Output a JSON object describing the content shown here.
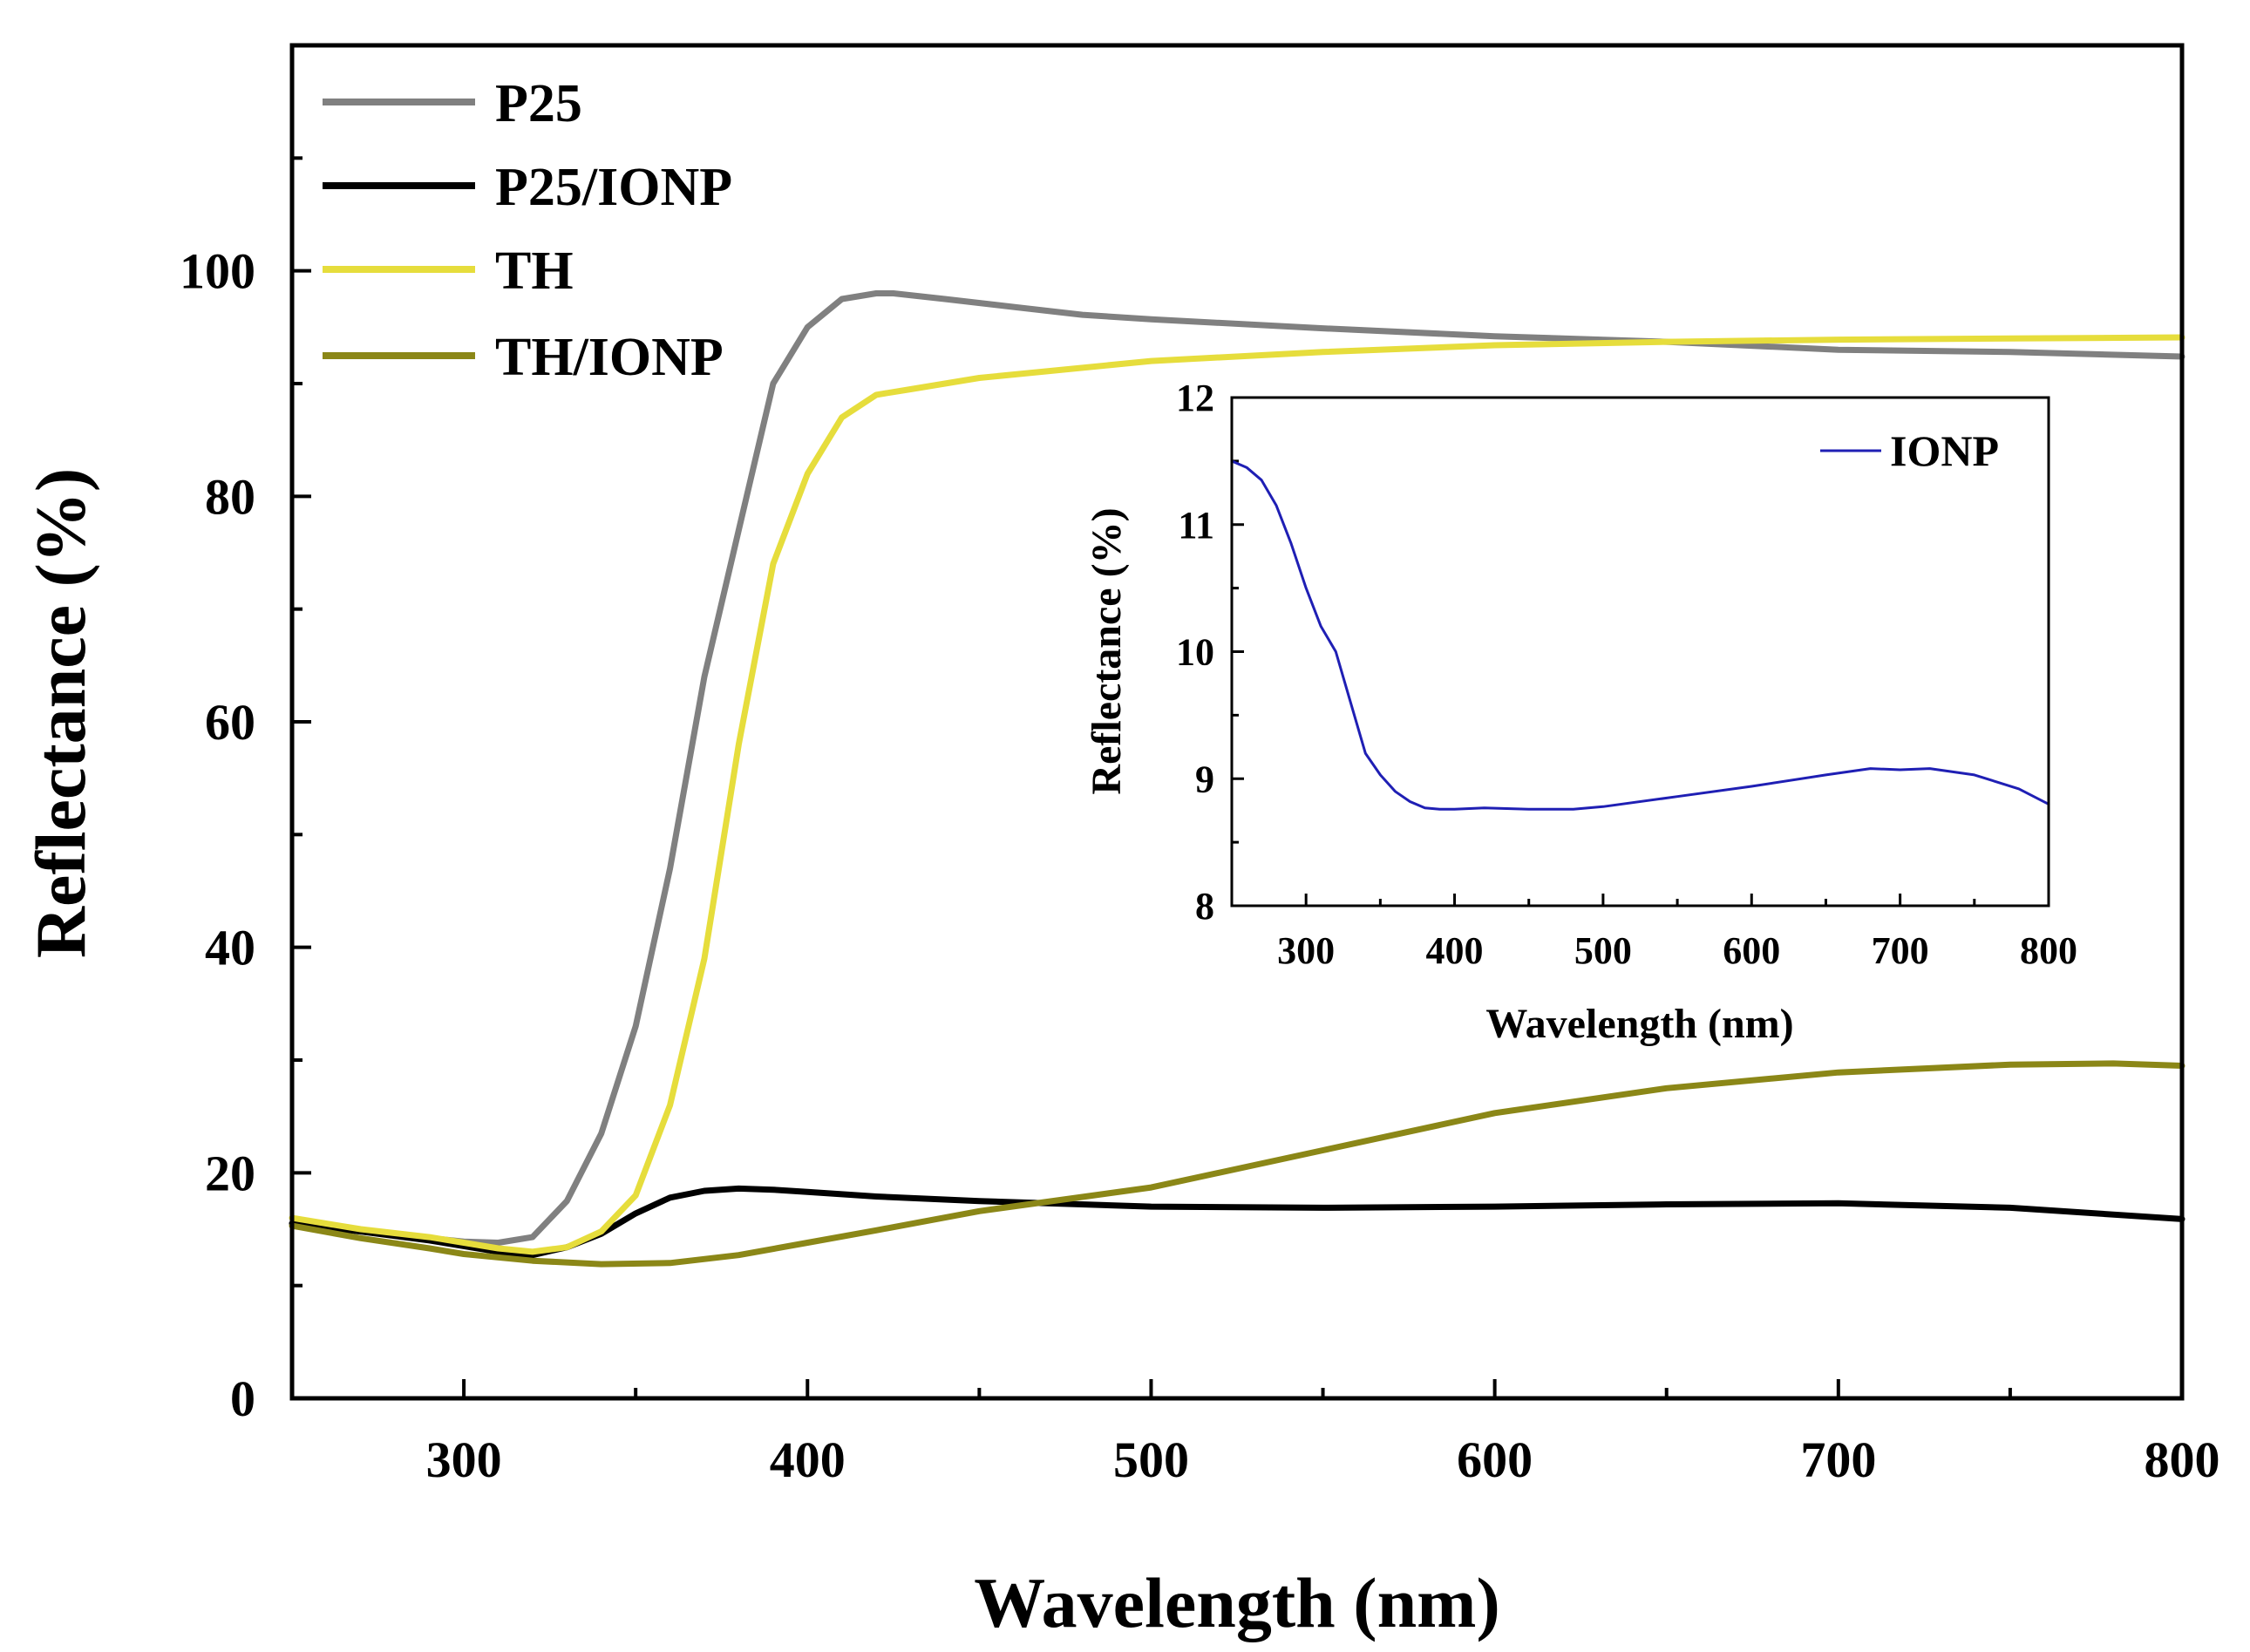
{
  "chart_data": [
    {
      "type": "line",
      "xlabel": "Wavelength (nm)",
      "ylabel": "Reflectance (%)",
      "xlim": [
        250,
        800
      ],
      "ylim": [
        0,
        120
      ],
      "xticks": [
        300,
        400,
        500,
        600,
        700,
        800
      ],
      "yticks": [
        0,
        20,
        40,
        60,
        80,
        100
      ],
      "legend_position": "top-left",
      "series": [
        {
          "name": "P25",
          "color": "#808080",
          "x": [
            250,
            270,
            290,
            300,
            310,
            320,
            330,
            340,
            350,
            360,
            370,
            380,
            390,
            400,
            410,
            420,
            425,
            440,
            460,
            480,
            500,
            550,
            600,
            650,
            700,
            750,
            800
          ],
          "y": [
            15.5,
            14.8,
            14.2,
            13.9,
            13.8,
            14.3,
            17.5,
            23.5,
            33,
            47,
            64,
            77,
            90,
            95,
            97.5,
            98,
            98,
            97.5,
            96.8,
            96.1,
            95.7,
            94.9,
            94.2,
            93.7,
            93,
            92.8,
            92.4
          ]
        },
        {
          "name": "P25/IONP",
          "color": "#000000",
          "x": [
            250,
            270,
            290,
            300,
            310,
            320,
            330,
            340,
            350,
            360,
            370,
            380,
            390,
            400,
            420,
            450,
            500,
            550,
            600,
            650,
            700,
            750,
            800
          ],
          "y": [
            15.5,
            14.8,
            14,
            13.5,
            13,
            12.7,
            13.4,
            14.6,
            16.4,
            17.8,
            18.4,
            18.6,
            18.5,
            18.3,
            17.9,
            17.5,
            17,
            16.9,
            17,
            17.2,
            17.3,
            16.9,
            15.9
          ]
        },
        {
          "name": "TH",
          "color": "#e6dd3c",
          "x": [
            250,
            270,
            290,
            300,
            310,
            320,
            330,
            340,
            350,
            360,
            370,
            380,
            390,
            400,
            410,
            420,
            430,
            450,
            500,
            550,
            600,
            650,
            700,
            750,
            800
          ],
          "y": [
            16,
            15,
            14.3,
            13.8,
            13.3,
            13,
            13.4,
            14.8,
            18,
            26,
            39,
            58,
            74,
            82,
            87,
            89,
            89.5,
            90.5,
            92,
            92.8,
            93.4,
            93.7,
            93.9,
            94,
            94.1
          ]
        },
        {
          "name": "TH/IONP",
          "color": "#8b8717",
          "x": [
            250,
            270,
            290,
            300,
            320,
            340,
            360,
            380,
            400,
            420,
            450,
            500,
            550,
            600,
            650,
            700,
            750,
            780,
            800
          ],
          "y": [
            15.3,
            14.2,
            13.3,
            12.8,
            12.2,
            11.9,
            12,
            12.7,
            13.8,
            14.9,
            16.6,
            18.7,
            22,
            25.3,
            27.5,
            28.9,
            29.6,
            29.7,
            29.5
          ]
        }
      ]
    },
    {
      "type": "line",
      "placement": "inset, upper-right",
      "xlabel": "Wavelength (nm)",
      "ylabel": "Reflectance (%)",
      "xlim": [
        250,
        800
      ],
      "ylim": [
        8,
        12
      ],
      "xticks": [
        300,
        400,
        500,
        600,
        700,
        800
      ],
      "yticks": [
        8,
        9,
        10,
        11,
        12
      ],
      "legend_position": "top-right",
      "series": [
        {
          "name": "IONP",
          "color": "#1f1fb4",
          "x": [
            250,
            260,
            270,
            280,
            290,
            300,
            310,
            320,
            330,
            340,
            350,
            360,
            370,
            380,
            390,
            400,
            420,
            450,
            480,
            500,
            550,
            600,
            650,
            680,
            700,
            720,
            750,
            780,
            800
          ],
          "y": [
            11.5,
            11.45,
            11.35,
            11.15,
            10.85,
            10.5,
            10.2,
            10,
            9.6,
            9.2,
            9.03,
            8.9,
            8.82,
            8.77,
            8.76,
            8.76,
            8.77,
            8.76,
            8.76,
            8.78,
            8.86,
            8.94,
            9.03,
            9.08,
            9.07,
            9.08,
            9.03,
            8.92,
            8.8
          ]
        }
      ]
    }
  ]
}
